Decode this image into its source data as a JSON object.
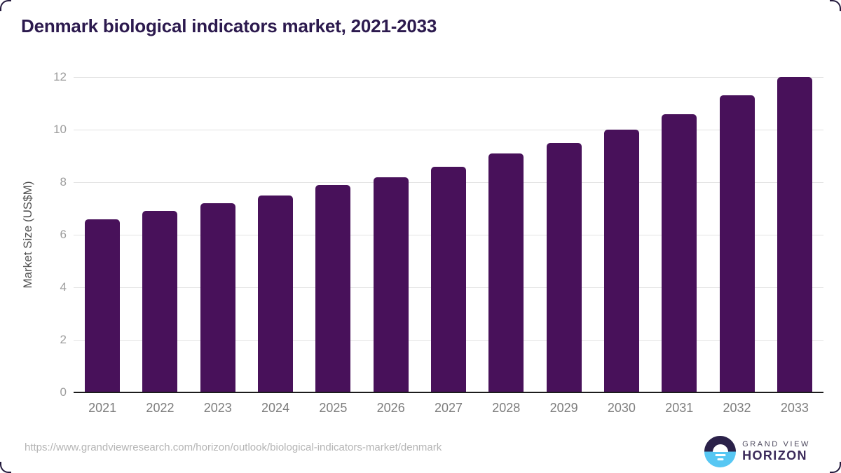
{
  "page": {
    "title": "Denmark biological indicators market, 2021-2033"
  },
  "chart_data": {
    "type": "bar",
    "title": "Denmark biological indicators market, 2021-2033",
    "categories": [
      "2021",
      "2022",
      "2023",
      "2024",
      "2025",
      "2026",
      "2027",
      "2028",
      "2029",
      "2030",
      "2031",
      "2032",
      "2033"
    ],
    "values": [
      6.6,
      6.9,
      7.2,
      7.5,
      7.9,
      8.2,
      8.6,
      9.1,
      9.5,
      10.0,
      10.6,
      11.3,
      12.0
    ],
    "xlabel": "",
    "ylabel": "Market Size (US$M)",
    "ylim": [
      0,
      12
    ],
    "yticks": [
      0,
      2,
      4,
      6,
      8,
      10,
      12
    ],
    "grid": true,
    "legend": "none",
    "bar_color": "#48115a"
  },
  "footer": {
    "source_url": "https://www.grandviewresearch.com/horizon/outlook/biological-indicators-market/denmark",
    "logo": {
      "icon": "sunrise-horizon-icon",
      "line1": "GRAND VIEW",
      "line2": "HORIZON"
    }
  },
  "colors": {
    "title": "#2c1a4e",
    "bar": "#48115a",
    "axis_line": "#1c1c1c",
    "gridline": "#e3e3e3",
    "tick_label": "#9c9c9c",
    "x_label": "#7d7d7d",
    "axis_title": "#4f4f4f",
    "url_text": "#b5b5b5",
    "logo_dark": "#2b2149",
    "logo_blue": "#57c7f3",
    "border": "#241a3d"
  }
}
